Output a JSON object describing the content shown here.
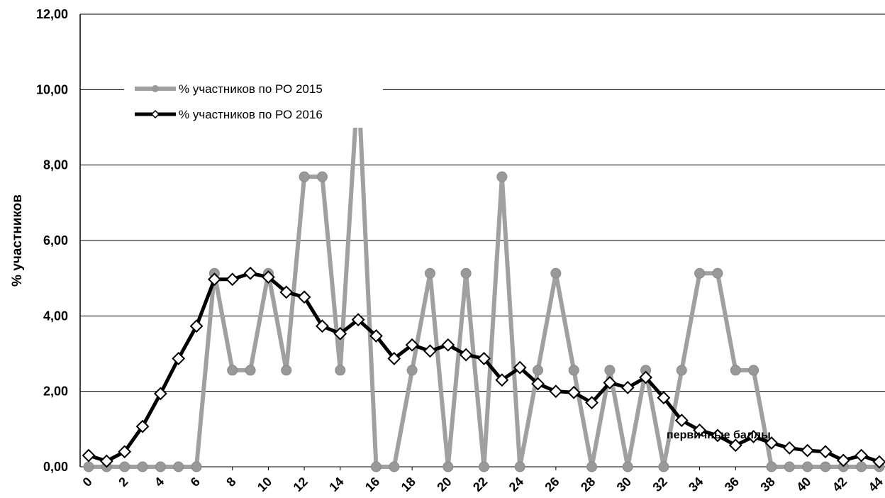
{
  "chart_data": {
    "type": "line",
    "y_label": "% участников",
    "annotation": "первичные баллы",
    "x": [
      0,
      1,
      2,
      3,
      4,
      5,
      6,
      7,
      8,
      9,
      10,
      11,
      12,
      13,
      14,
      15,
      16,
      17,
      18,
      19,
      20,
      21,
      22,
      23,
      24,
      25,
      26,
      27,
      28,
      29,
      30,
      31,
      32,
      33,
      34,
      35,
      36,
      37,
      38,
      39,
      40,
      41,
      42,
      43,
      44
    ],
    "xlim": [
      0,
      44
    ],
    "xticks": [
      0,
      2,
      4,
      6,
      8,
      10,
      12,
      14,
      16,
      18,
      20,
      22,
      24,
      26,
      28,
      30,
      32,
      34,
      36,
      38,
      40,
      42,
      44
    ],
    "ylim": [
      0,
      12
    ],
    "yticks": [
      {
        "value": 0,
        "label": "0,00"
      },
      {
        "value": 2,
        "label": "2,00"
      },
      {
        "value": 4,
        "label": "4,00"
      },
      {
        "value": 6,
        "label": "6,00"
      },
      {
        "value": 8,
        "label": "8,00"
      },
      {
        "value": 10,
        "label": "10,00"
      },
      {
        "value": 12,
        "label": "12,00"
      }
    ],
    "grid": true,
    "legend": "upper left",
    "series": [
      {
        "name": "% участников по РО 2015",
        "color": "#a0a0a0",
        "marker": "circle",
        "values": [
          0,
          0,
          0,
          0,
          0,
          0,
          0,
          5.13,
          2.56,
          2.56,
          5.13,
          2.56,
          7.69,
          7.69,
          2.56,
          10.26,
          0,
          0,
          2.56,
          5.13,
          0,
          5.13,
          0,
          7.69,
          0,
          2.56,
          5.13,
          2.56,
          0,
          2.56,
          0,
          2.56,
          0,
          2.56,
          5.13,
          5.13,
          2.56,
          2.56,
          0,
          0,
          0,
          0,
          0,
          0,
          0
        ]
      },
      {
        "name": "% участников по РО 2016",
        "color": "#000000",
        "marker": "diamond",
        "values": [
          0.3,
          0.15,
          0.4,
          1.07,
          1.94,
          2.87,
          3.73,
          4.97,
          4.97,
          5.13,
          5.03,
          4.63,
          4.5,
          3.73,
          3.53,
          3.9,
          3.47,
          2.87,
          3.23,
          3.07,
          3.23,
          2.97,
          2.87,
          2.3,
          2.63,
          2.2,
          2.0,
          1.97,
          1.7,
          2.23,
          2.1,
          2.37,
          1.83,
          1.23,
          0.97,
          0.83,
          0.57,
          0.8,
          0.63,
          0.5,
          0.43,
          0.4,
          0.17,
          0.3,
          0.13
        ]
      }
    ]
  }
}
